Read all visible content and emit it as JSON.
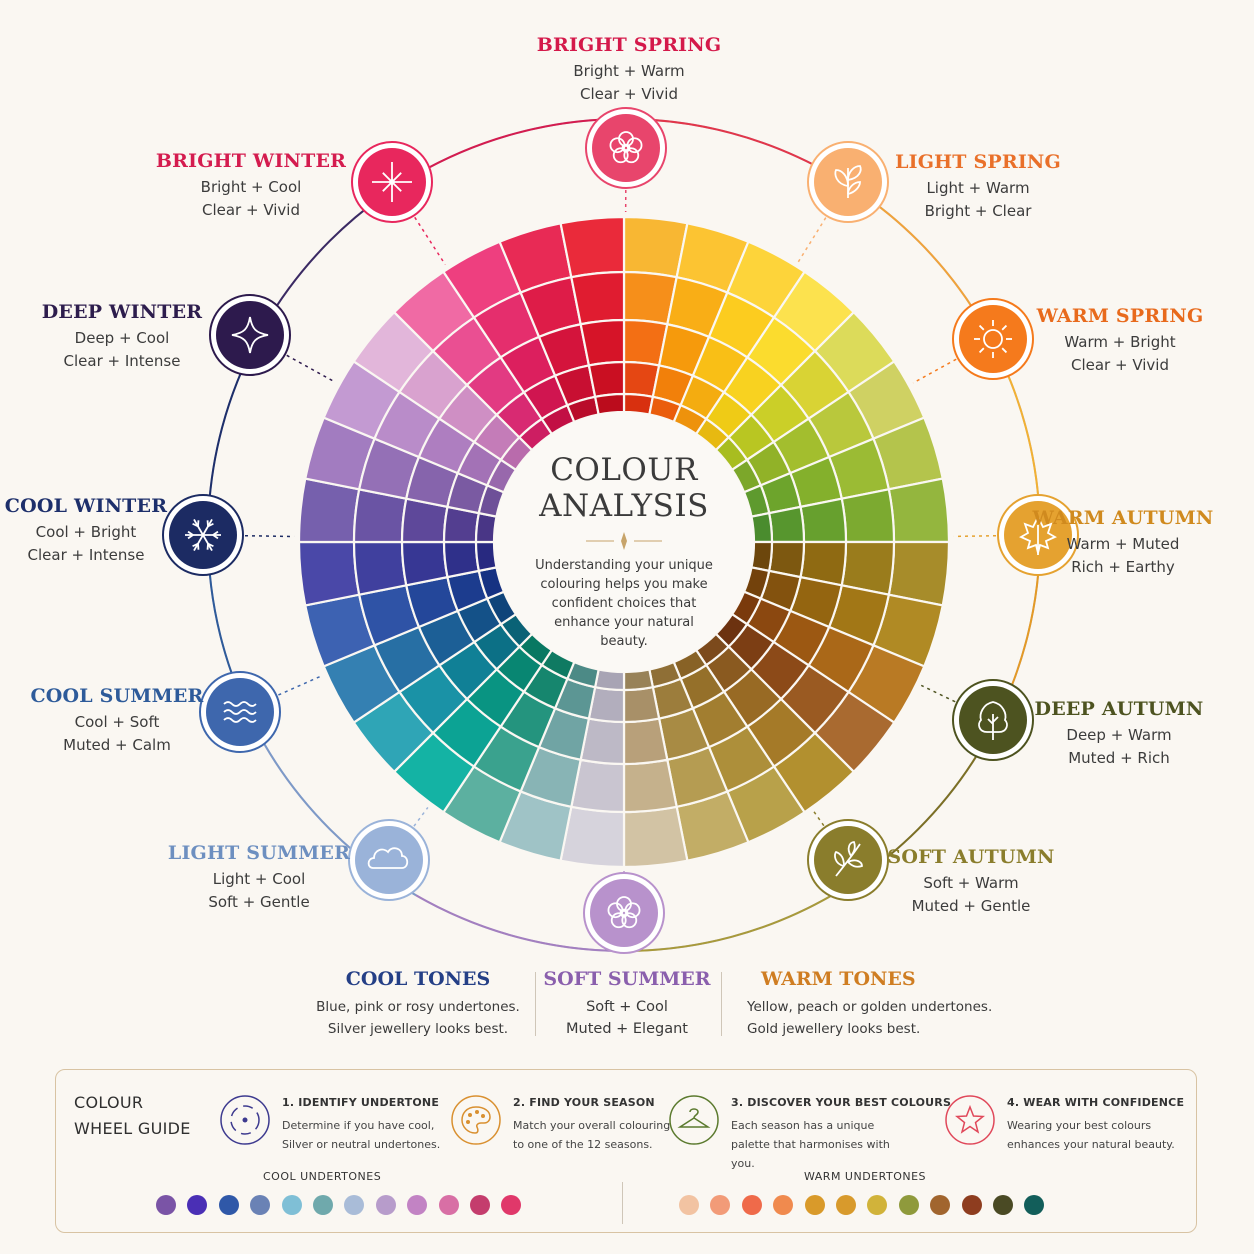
{
  "center": {
    "title_line1": "COLOUR",
    "title_line2": "ANALYSIS",
    "text": "Understanding your unique colouring helps you make confident choices that enhance your natural beauty."
  },
  "seasons": [
    {
      "id": "bright-spring",
      "title": "BRIGHT SPRING",
      "line1": "Bright + Warm",
      "line2": "Clear + Vivid",
      "color": "#d4194a",
      "icon": "flower-icon"
    },
    {
      "id": "light-spring",
      "title": "LIGHT SPRING",
      "line1": "Light + Warm",
      "line2": "Bright + Clear",
      "color": "#e9702a",
      "icon": "leaf-sprout-icon"
    },
    {
      "id": "warm-spring",
      "title": "WARM SPRING",
      "line1": "Warm + Bright",
      "line2": "Clear + Vivid",
      "color": "#e86a1c",
      "icon": "sun-icon"
    },
    {
      "id": "warm-autumn",
      "title": "WARM AUTUMN",
      "line1": "Warm + Muted",
      "line2": "Rich + Earthy",
      "color": "#d08a1e",
      "icon": "maple-leaf-icon"
    },
    {
      "id": "deep-autumn",
      "title": "DEEP AUTUMN",
      "line1": "Deep + Warm",
      "line2": "Muted + Rich",
      "color": "#4d5320",
      "icon": "tree-icon"
    },
    {
      "id": "soft-autumn",
      "title": "SOFT AUTUMN",
      "line1": "Soft + Warm",
      "line2": "Muted + Gentle",
      "color": "#8a7d2c",
      "icon": "branch-icon"
    },
    {
      "id": "soft-summer",
      "title": "",
      "line1": "",
      "line2": "",
      "color": "#9b6ab0",
      "icon": "blossom-icon"
    },
    {
      "id": "light-summer",
      "title": "LIGHT SUMMER",
      "line1": "Light + Cool",
      "line2": "Soft + Gentle",
      "color": "#6d8fc0",
      "icon": "cloud-icon"
    },
    {
      "id": "cool-summer",
      "title": "COOL SUMMER",
      "line1": "Cool + Soft",
      "line2": "Muted + Calm",
      "color": "#2e5b9a",
      "icon": "waves-icon"
    },
    {
      "id": "cool-winter",
      "title": "COOL WINTER",
      "line1": "Cool + Bright",
      "line2": "Clear + Intense",
      "color": "#1d2f6b",
      "icon": "snowflake-icon"
    },
    {
      "id": "deep-winter",
      "title": "DEEP WINTER",
      "line1": "Deep + Cool",
      "line2": "Clear + Intense",
      "color": "#2d1d4d",
      "icon": "star-sparkle-icon"
    },
    {
      "id": "bright-winter",
      "title": "BRIGHT WINTER",
      "line1": "Bright + Cool",
      "line2": "Clear + Vivid",
      "color": "#d41c4f",
      "icon": "starburst-icon"
    }
  ],
  "tones": {
    "cool": {
      "title": "COOL TONES",
      "line1": "Blue, pink or rosy undertones.",
      "line2": "Silver jewellery looks best.",
      "color": "#243f86"
    },
    "soft_summer": {
      "title": "SOFT SUMMER",
      "line1": "Soft + Cool",
      "line2": "Muted + Elegant",
      "color": "#8a5fad"
    },
    "warm": {
      "title": "WARM TONES",
      "line1": "Yellow, peach or golden undertones.",
      "line2": "Gold jewellery looks best.",
      "color": "#cf7d22"
    }
  },
  "guide": {
    "title_line1": "COLOUR",
    "title_line2": "WHEEL GUIDE",
    "steps": [
      {
        "title": "1. IDENTIFY UNDERTONE",
        "desc": "Determine if you have cool, Silver or neutral undertones.",
        "icon": "target-circle-icon",
        "color": "#3d3a8f"
      },
      {
        "title": "2. FIND YOUR SEASON",
        "desc": "Match your overall colouring to one of the 12 seasons.",
        "icon": "palette-icon",
        "color": "#d99030"
      },
      {
        "title": "3. DISCOVER YOUR BEST COLOURS",
        "desc": "Each season has a unique palette that harmonises with you.",
        "icon": "hanger-icon",
        "color": "#5b7a2e"
      },
      {
        "title": "4. WEAR WITH CONFIDENCE",
        "desc": "Wearing your best colours enhances your natural beauty.",
        "icon": "star-icon",
        "color": "#e0485a"
      }
    ],
    "cool_label": "COOL UNDERTONES",
    "warm_label": "WARM UNDERTONES",
    "cool_swatches": [
      "#7a54a6",
      "#4a2fb5",
      "#2f58a8",
      "#6a82b5",
      "#7fbfd6",
      "#6fa9ac",
      "#a9bcd8",
      "#b79ccb",
      "#c283c4",
      "#d86fa5",
      "#c43d6d",
      "#e0386a"
    ],
    "warm_swatches": [
      "#f2c3a2",
      "#f29b78",
      "#ef6a4a",
      "#f08a4e",
      "#d99a2a",
      "#d89a2c",
      "#d1b33a",
      "#8f9a3c",
      "#a1652e",
      "#8e3d1f",
      "#4a4a24",
      "#125e5a"
    ]
  },
  "wheel": {
    "ring_colors": [
      [
        "#f8b733",
        "#f68f1a",
        "#f36f14",
        "#e54713",
        "#d8300f"
      ],
      [
        "#fcc432",
        "#f9ae16",
        "#f69a0c",
        "#f2800a",
        "#ea5d0c"
      ],
      [
        "#fdd43a",
        "#fccc1f",
        "#f9bf16",
        "#f4ac10",
        "#ee920c"
      ],
      [
        "#fce24e",
        "#fbdc2e",
        "#f8d220",
        "#efcb16",
        "#e7b911"
      ],
      [
        "#dcdb5a",
        "#d9d334",
        "#cbcf28",
        "#b9c622",
        "#a8bd20"
      ],
      [
        "#cfd163",
        "#b9c83c",
        "#a3be2e",
        "#91b228",
        "#7ca72a"
      ],
      [
        "#b4c44c",
        "#9bbb34",
        "#84b02c",
        "#6da42c",
        "#5e9a2e"
      ],
      [
        "#94b63e",
        "#7caa30",
        "#67a02e",
        "#57962e",
        "#4a8c2e"
      ],
      [
        "#a78c2a",
        "#9a7c1c",
        "#8f6a12",
        "#7d5810",
        "#6c460c"
      ],
      [
        "#b08a24",
        "#a27716",
        "#946510",
        "#83520e",
        "#73420c"
      ],
      [
        "#b97a24",
        "#aa6818",
        "#9c5812",
        "#8b4810",
        "#7a3a0c"
      ],
      [
        "#a96a30",
        "#9a5a22",
        "#8c4a18",
        "#7c3e14",
        "#6c3210"
      ],
      [
        "#b2902f",
        "#a57a28",
        "#986a24",
        "#8a5a20",
        "#7c4a1c"
      ],
      [
        "#b8a14a",
        "#ad8f3a",
        "#a27e30",
        "#95702a",
        "#886226"
      ],
      [
        "#c2ad66",
        "#b59c52",
        "#a88b44",
        "#9c7d3c",
        "#8f6f36"
      ],
      [
        "#d2c3a4",
        "#c5b18c",
        "#b8a07a",
        "#a89068",
        "#988258"
      ],
      [
        "#d6d3dc",
        "#c9c5d0",
        "#bdb9c6",
        "#b2aebd",
        "#a8a4b4"
      ],
      [
        "#9fc3c6",
        "#88b4b5",
        "#70a4a4",
        "#5c9694",
        "#4c8a86"
      ],
      [
        "#5cb0a0",
        "#3aa28e",
        "#24947e",
        "#16866e",
        "#0f7a62"
      ],
      [
        "#14b3a4",
        "#0ca394",
        "#099482",
        "#088672",
        "#087862"
      ],
      [
        "#2fa5b6",
        "#1a92a6",
        "#108096",
        "#0c7086",
        "#0a6276"
      ],
      [
        "#3480b2",
        "#276fa4",
        "#1c5f96",
        "#145188",
        "#0f447a"
      ],
      [
        "#3d62b2",
        "#2f53a6",
        "#24479a",
        "#1c3c8e",
        "#163282"
      ],
      [
        "#4a48a8",
        "#40409e",
        "#373794",
        "#2f308a",
        "#282980"
      ],
      [
        "#7660ad",
        "#6a54a4",
        "#5e489a",
        "#533e90",
        "#493686"
      ],
      [
        "#a27cc0",
        "#9470b6",
        "#8664ac",
        "#7a5aa2",
        "#6e5098"
      ],
      [
        "#c39ad2",
        "#b98cc9",
        "#ae7ec0",
        "#a372b6",
        "#9868ac"
      ],
      [
        "#e2b6da",
        "#d9a2cf",
        "#cf8fc4",
        "#c47cb8",
        "#b96bac"
      ],
      [
        "#f06aa4",
        "#ea4f92",
        "#e23a82",
        "#d82a72",
        "#cd1e62"
      ],
      [
        "#ee3f7f",
        "#e52e6d",
        "#dc1f5e",
        "#d01550",
        "#c20f44"
      ],
      [
        "#e82a55",
        "#de1c48",
        "#d4143c",
        "#c80f32",
        "#b90c2a"
      ],
      [
        "#ea2a3a",
        "#e01c30",
        "#d61428",
        "#ca0f22",
        "#bb0c1c"
      ]
    ]
  }
}
